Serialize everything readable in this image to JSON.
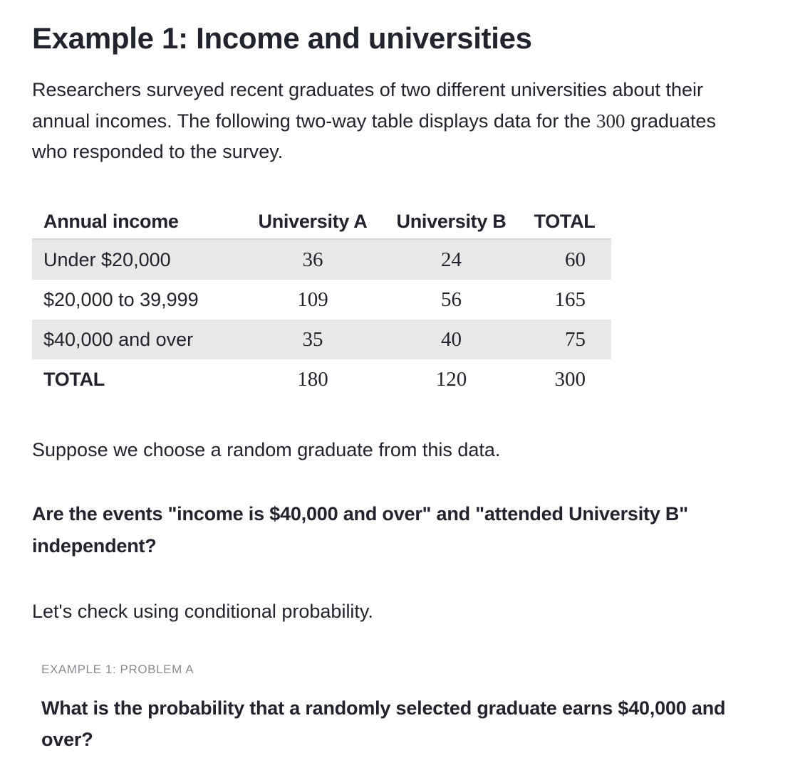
{
  "title": "Example 1: Income and universities",
  "intro": {
    "text_before": "Researchers surveyed recent graduates of two different universities about their annual incomes. The following two-way table displays data for the ",
    "number": "300",
    "text_after": " graduates who responded to the survey."
  },
  "table": {
    "headers": [
      "Annual income",
      "University A",
      "University B",
      "TOTAL"
    ],
    "rows": [
      {
        "label": "Under $20,000",
        "values": [
          "36",
          "24",
          "60"
        ]
      },
      {
        "label": "$20,000 to 39,999",
        "values": [
          "109",
          "56",
          "165"
        ]
      },
      {
        "label": "$40,000 and over",
        "values": [
          "35",
          "40",
          "75"
        ]
      },
      {
        "label": "TOTAL",
        "values": [
          "180",
          "120",
          "300"
        ]
      }
    ]
  },
  "suppose_text": "Suppose we choose a random graduate from this data.",
  "question_text": "Are the events \"income is $40,000 and over\" and \"attended University B\" independent?",
  "check_text": "Let's check using conditional probability.",
  "problem": {
    "label": "EXAMPLE 1: PROBLEM A",
    "question": "What is the probability that a randomly selected graduate earns $40,000 and over?"
  },
  "colors": {
    "text": "#21242c",
    "row_shade": "#e8e8e9",
    "header_rule": "#d6d8da",
    "problem_label": "#8a8d93"
  }
}
